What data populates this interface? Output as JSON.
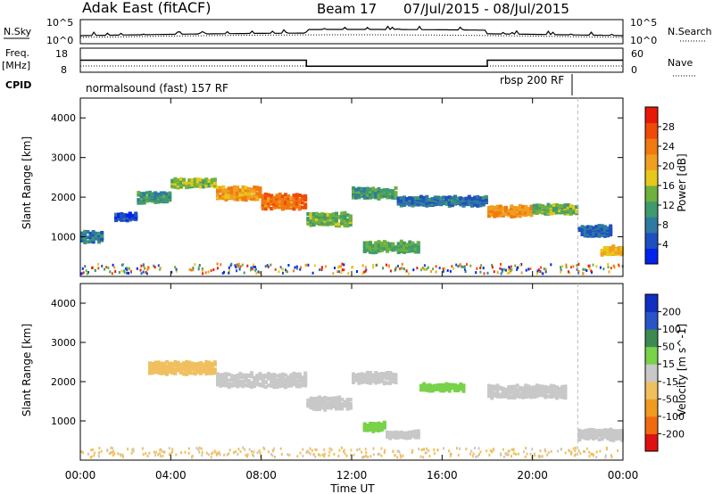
{
  "header": {
    "station": "Adak East (fitACF)",
    "beam": "Beam 17",
    "date_range": "07/Jul/2015 - 08/Jul/2015"
  },
  "noise_panel": {
    "left_label": "N.Sky",
    "right_label": "N.Search",
    "ticks": [
      "10^5",
      "10^0"
    ]
  },
  "freq_panel": {
    "left_label_top": "Freq.",
    "left_label_bottom": "[MHz]",
    "left_ticks": [
      "18",
      "8"
    ],
    "right_label": "Nave",
    "right_ticks": [
      "60",
      "0"
    ],
    "cpid_label": "CPID",
    "cpid_segments": [
      "normalsound (fast) 157 RF",
      "rbsp 200 RF"
    ]
  },
  "power_panel": {
    "ylabel": "Slant Range [km]",
    "yticks": [
      "4000",
      "3000",
      "2000",
      "1000"
    ],
    "colorbar_label": "Power [dB]",
    "colorbar_ticks": [
      "28",
      "24",
      "20",
      "16",
      "12",
      "8",
      "4"
    ]
  },
  "velocity_panel": {
    "ylabel": "Slant Range [km]",
    "yticks": [
      "4000",
      "3000",
      "2000",
      "1000"
    ],
    "colorbar_label": "Velocity [m s^-1]",
    "colorbar_ticks": [
      "200",
      "100",
      "50",
      "15",
      "-15",
      "-50",
      "-100",
      "-200"
    ]
  },
  "xaxis": {
    "label": "Time UT",
    "ticks": [
      "00:00",
      "04:00",
      "08:00",
      "12:00",
      "16:00",
      "20:00",
      "00:00"
    ]
  },
  "colors": {
    "power_scale": [
      "#0022ee",
      "#1e4fc0",
      "#2f7aa0",
      "#3f9b6e",
      "#6eb13d",
      "#e8c81a",
      "#f0a020",
      "#f07a10",
      "#f04a08",
      "#e81808"
    ],
    "velocity_scale": [
      "#1030c0",
      "#2856c8",
      "#3a8a52",
      "#78d24a",
      "#c8c8c8",
      "#f0c060",
      "#f09a20",
      "#f06a10",
      "#e01010"
    ]
  },
  "chart_data": {
    "type": "heatmap",
    "x_range_hours": [
      0,
      24
    ],
    "y_range_km": [
      0,
      4500
    ],
    "cpid_changes_hours": [
      22
    ],
    "frequency_mhz": [
      {
        "start": 0,
        "end": 10,
        "value": 13
      },
      {
        "start": 10,
        "end": 18,
        "value": 10.5
      },
      {
        "start": 18,
        "end": 24,
        "value": 13
      }
    ],
    "power_db": [
      {
        "from_hour": 0.0,
        "to_hour": 1.0,
        "range_km": 1050,
        "width_km": 250,
        "value": 10
      },
      {
        "from_hour": 1.5,
        "to_hour": 2.5,
        "range_km": 1550,
        "width_km": 150,
        "value": 6
      },
      {
        "from_hour": 2.5,
        "to_hour": 4.0,
        "range_km": 2050,
        "width_km": 250,
        "value": 12
      },
      {
        "from_hour": 4.0,
        "to_hour": 6.0,
        "range_km": 2400,
        "width_km": 200,
        "value": 16
      },
      {
        "from_hour": 6.0,
        "to_hour": 8.0,
        "range_km": 2150,
        "width_km": 300,
        "value": 22
      },
      {
        "from_hour": 8.0,
        "to_hour": 10.0,
        "range_km": 1950,
        "width_km": 350,
        "value": 25
      },
      {
        "from_hour": 10.0,
        "to_hour": 12.0,
        "range_km": 1500,
        "width_km": 300,
        "value": 15
      },
      {
        "from_hour": 12.0,
        "to_hour": 14.0,
        "range_km": 2150,
        "width_km": 250,
        "value": 12
      },
      {
        "from_hour": 12.5,
        "to_hour": 15.0,
        "range_km": 800,
        "width_km": 250,
        "value": 14
      },
      {
        "from_hour": 14.0,
        "to_hour": 18.0,
        "range_km": 1950,
        "width_km": 200,
        "value": 9
      },
      {
        "from_hour": 18.0,
        "to_hour": 20.0,
        "range_km": 1700,
        "width_km": 250,
        "value": 23
      },
      {
        "from_hour": 20.0,
        "to_hour": 22.0,
        "range_km": 1750,
        "width_km": 200,
        "value": 15
      },
      {
        "from_hour": 22.0,
        "to_hour": 23.5,
        "range_km": 1200,
        "width_km": 250,
        "value": 8
      },
      {
        "from_hour": 23.0,
        "to_hour": 24.0,
        "range_km": 700,
        "width_km": 200,
        "value": 20
      }
    ],
    "velocity_ms": [
      {
        "from_hour": 3.0,
        "to_hour": 6.0,
        "range_km": 2400,
        "width_km": 300,
        "value": -30
      },
      {
        "from_hour": 6.0,
        "to_hour": 10.0,
        "range_km": 2100,
        "width_km": 350,
        "value": 0
      },
      {
        "from_hour": 10.0,
        "to_hour": 12.0,
        "range_km": 1500,
        "width_km": 300,
        "value": 0
      },
      {
        "from_hour": 12.0,
        "to_hour": 14.0,
        "range_km": 2150,
        "width_km": 250,
        "value": 0
      },
      {
        "from_hour": 12.5,
        "to_hour": 13.5,
        "range_km": 900,
        "width_km": 200,
        "value": 30
      },
      {
        "from_hour": 13.5,
        "to_hour": 15.0,
        "range_km": 700,
        "width_km": 150,
        "value": 0
      },
      {
        "from_hour": 15.0,
        "to_hour": 17.0,
        "range_km": 1900,
        "width_km": 150,
        "value": 20
      },
      {
        "from_hour": 18.0,
        "to_hour": 21.5,
        "range_km": 1800,
        "width_km": 300,
        "value": 0
      },
      {
        "from_hour": 22.0,
        "to_hour": 24.0,
        "range_km": 700,
        "width_km": 250,
        "value": 0
      }
    ]
  }
}
